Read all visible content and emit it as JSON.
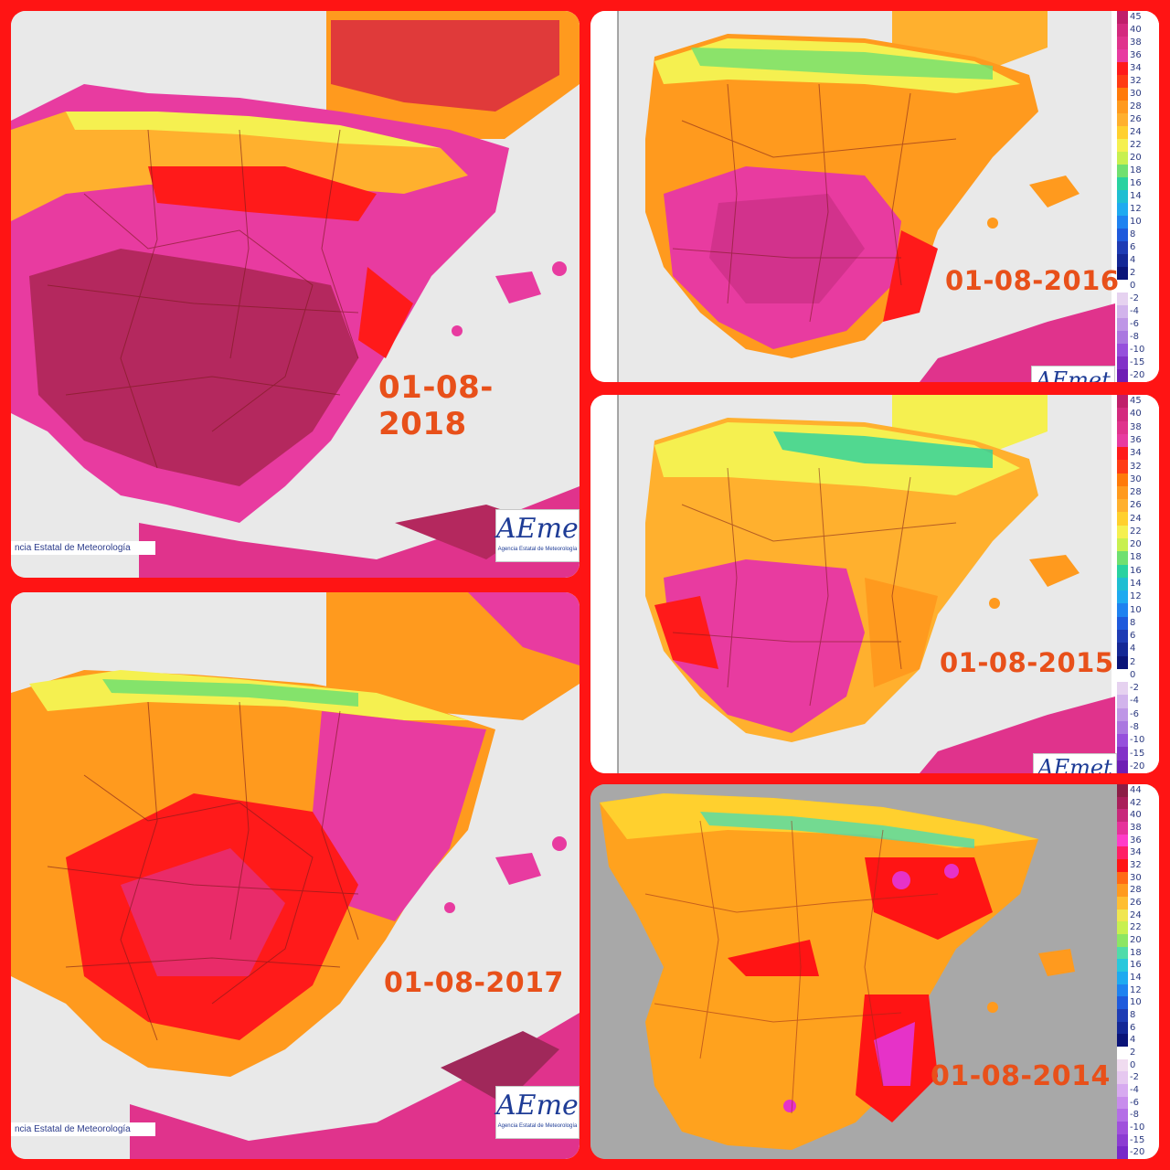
{
  "panels": [
    {
      "id": "p2018",
      "date": "01-08-2018",
      "agency_text": "ncia Estatal de Meteorología",
      "logo_text": "AEmet",
      "logo_sub": "Agencia Estatal de Meteorología"
    },
    {
      "id": "p2016",
      "date": "01-08-2016",
      "logo_text": "AEmet"
    },
    {
      "id": "p2017",
      "date": "01-08-2017",
      "agency_text": "ncia Estatal de Meteorología",
      "logo_text": "AEmet",
      "logo_sub": "Agencia Estatal de Meteorología"
    },
    {
      "id": "p2015",
      "date": "01-08-2015",
      "logo_text": "AEmet"
    },
    {
      "id": "p2014",
      "date": "01-08-2014"
    }
  ],
  "legend_aemet": {
    "labels": [
      "45",
      "40",
      "38",
      "36",
      "34",
      "32",
      "30",
      "28",
      "26",
      "24",
      "22",
      "20",
      "18",
      "16",
      "14",
      "12",
      "10",
      "8",
      "6",
      "4",
      "2",
      "0",
      "-2",
      "-4",
      "-6",
      "-8",
      "-10",
      "-15",
      "-20"
    ],
    "colors": [
      "#c01f6a",
      "#d42a7e",
      "#e0338c",
      "#e83ba0",
      "#ff1a1a",
      "#ff3c14",
      "#ff7a0a",
      "#ff9a1e",
      "#ffb02e",
      "#ffd02e",
      "#f5f050",
      "#c8f050",
      "#70e070",
      "#28d2a0",
      "#1ebed2",
      "#1eaaf0",
      "#1e82f0",
      "#1e5adc",
      "#1e3cb4",
      "#142896",
      "#0a1478",
      "#ffffff",
      "#e6d2f0",
      "#d2b4ec",
      "#be96e6",
      "#aa78e0",
      "#9650dc",
      "#8232c8",
      "#6e1eb4"
    ]
  },
  "legend_2014": {
    "labels": [
      "44",
      "42",
      "40",
      "38",
      "36",
      "34",
      "32",
      "30",
      "28",
      "26",
      "24",
      "22",
      "20",
      "18",
      "16",
      "14",
      "12",
      "10",
      "8",
      "6",
      "4",
      "2",
      "0",
      "-2",
      "-4",
      "-6",
      "-8",
      "-10",
      "-15",
      "-20"
    ],
    "colors": [
      "#8c1e46",
      "#aa1e5a",
      "#c8287a",
      "#e6329a",
      "#ff3cc8",
      "#ff1e64",
      "#ff1414",
      "#ff6a14",
      "#ff9a1e",
      "#ffbe32",
      "#f0e650",
      "#c8f050",
      "#8ce664",
      "#50dcaa",
      "#28c8dc",
      "#1eaaf0",
      "#1e82f0",
      "#1e5adc",
      "#1e3cb4",
      "#142896",
      "#0a1478",
      "#ffffff",
      "#f0dcf0",
      "#e6c8f0",
      "#d7aaf0",
      "#c88cec",
      "#b46ee6",
      "#a050dc",
      "#8c3cd2",
      "#7828c8"
    ]
  }
}
